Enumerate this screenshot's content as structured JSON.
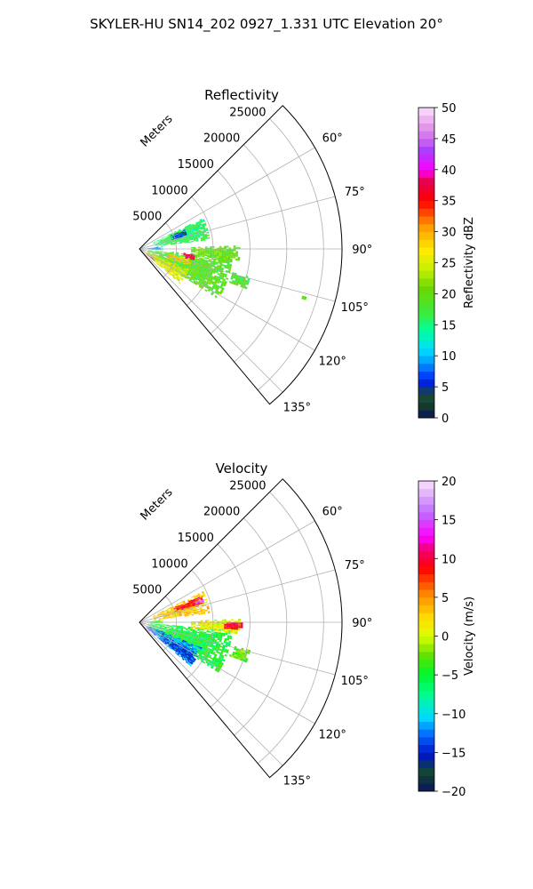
{
  "figure": {
    "title": "SKYLER-HU  SN14_202  0927_1.331 UTC Elevation 20°"
  },
  "chart_data": [
    {
      "type": "polar-sector",
      "title": "Reflectivity",
      "range_label": "Meters",
      "r_ticks": [
        5000,
        10000,
        15000,
        20000,
        25000
      ],
      "r_tick_labels": [
        "5000",
        "10000",
        "15000",
        "20000",
        "25000"
      ],
      "rlim": [
        0,
        27500
      ],
      "theta_ticks": [
        60,
        75,
        90,
        105,
        120,
        135
      ],
      "theta_tick_labels": [
        "60°",
        "75°",
        "90°",
        "105°",
        "120°",
        "135°"
      ],
      "theta_range": [
        45,
        140
      ],
      "grid": true,
      "colorbar": {
        "label": "Reflectivity dBZ",
        "range": [
          0,
          50
        ],
        "ticks": [
          0,
          5,
          10,
          15,
          20,
          25,
          30,
          35,
          40,
          45,
          50
        ],
        "tick_labels": [
          "0",
          "5",
          "10",
          "15",
          "20",
          "25",
          "30",
          "35",
          "40",
          "45",
          "50"
        ]
      },
      "echo_regions": [
        {
          "az_range": [
            64,
            82
          ],
          "r_range": [
            2000,
            9500
          ],
          "value": 16
        },
        {
          "az_range": [
            67,
            74
          ],
          "r_range": [
            4500,
            6500
          ],
          "value": 6
        },
        {
          "az_range": [
            69,
            72
          ],
          "r_range": [
            7800,
            9200
          ],
          "value": 14
        },
        {
          "az_range": [
            84,
            92
          ],
          "r_range": [
            0,
            3000
          ],
          "value": 9
        },
        {
          "az_range": [
            95,
            122
          ],
          "r_range": [
            1200,
            12500
          ],
          "value": 19
        },
        {
          "az_range": [
            112,
            130
          ],
          "r_range": [
            1200,
            7000
          ],
          "value": 25
        },
        {
          "az_range": [
            100,
            108
          ],
          "r_range": [
            4000,
            7000
          ],
          "value": 28
        },
        {
          "az_range": [
            95,
            101
          ],
          "r_range": [
            6000,
            7500
          ],
          "value": 37
        },
        {
          "az_range": [
            88,
            96
          ],
          "r_range": [
            7000,
            13500
          ],
          "value": 20
        },
        {
          "az_range": [
            104,
            110
          ],
          "r_range": [
            13000,
            15500
          ],
          "value": 18
        },
        {
          "az_range": [
            124,
            128
          ],
          "r_range": [
            1000,
            2500
          ],
          "value": 42
        },
        {
          "az_range": [
            106,
            107
          ],
          "r_range": [
            23000,
            23500
          ],
          "value": 22
        }
      ]
    },
    {
      "type": "polar-sector",
      "title": "Velocity",
      "range_label": "Meters",
      "r_ticks": [
        5000,
        10000,
        15000,
        20000,
        25000
      ],
      "r_tick_labels": [
        "5000",
        "10000",
        "15000",
        "20000",
        "25000"
      ],
      "rlim": [
        0,
        27500
      ],
      "theta_ticks": [
        60,
        75,
        90,
        105,
        120,
        135
      ],
      "theta_tick_labels": [
        "60°",
        "75°",
        "90°",
        "105°",
        "120°",
        "135°"
      ],
      "theta_range": [
        45,
        140
      ],
      "grid": true,
      "colorbar": {
        "label": "Velocity (m/s)",
        "range": [
          -20,
          20
        ],
        "ticks": [
          -20,
          -15,
          -10,
          -5,
          0,
          5,
          10,
          15,
          20
        ],
        "tick_labels": [
          "−20",
          "−15",
          "−10",
          "−5",
          "0",
          "5",
          "10",
          "15",
          "20"
        ]
      },
      "echo_regions": [
        {
          "az_range": [
            64,
            82
          ],
          "r_range": [
            2000,
            9500
          ],
          "value": 3
        },
        {
          "az_range": [
            67,
            73
          ],
          "r_range": [
            5000,
            9000
          ],
          "value": 9
        },
        {
          "az_range": [
            69,
            72
          ],
          "r_range": [
            8000,
            9200
          ],
          "value": 15
        },
        {
          "az_range": [
            84,
            92
          ],
          "r_range": [
            0,
            3000
          ],
          "value": -4
        },
        {
          "az_range": [
            95,
            122
          ],
          "r_range": [
            1200,
            12500
          ],
          "value": -5
        },
        {
          "az_range": [
            88,
            96
          ],
          "r_range": [
            7000,
            13500
          ],
          "value": 1
        },
        {
          "az_range": [
            90,
            94
          ],
          "r_range": [
            11500,
            14000
          ],
          "value": 9
        },
        {
          "az_range": [
            112,
            130
          ],
          "r_range": [
            1200,
            9000
          ],
          "value": -12
        },
        {
          "az_range": [
            118,
            128
          ],
          "r_range": [
            4000,
            9000
          ],
          "value": -14
        },
        {
          "az_range": [
            124,
            128
          ],
          "r_range": [
            1000,
            3000
          ],
          "value": 15
        },
        {
          "az_range": [
            104,
            110
          ],
          "r_range": [
            13000,
            15500
          ],
          "value": -3
        },
        {
          "az_range": [
            106,
            107
          ],
          "r_range": [
            23000,
            23500
          ],
          "value": 5
        }
      ]
    }
  ]
}
